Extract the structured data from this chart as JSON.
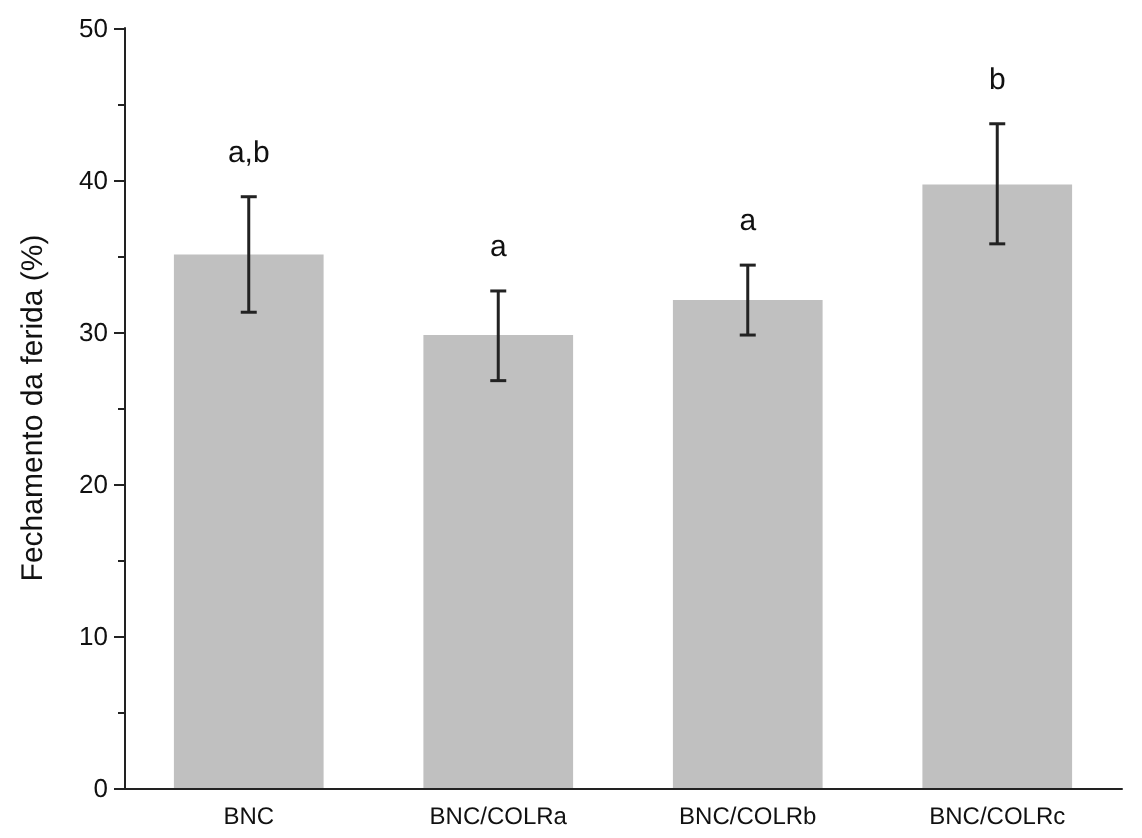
{
  "chart_data": {
    "type": "bar",
    "ylabel": "Fechamento da ferida (%)",
    "categories": [
      "BNC",
      "BNC/COLRa",
      "BNC/COLRb",
      "BNC/COLRc"
    ],
    "values": [
      35.1,
      29.8,
      32.1,
      39.7
    ],
    "errors": [
      [
        31.3,
        38.9
      ],
      [
        26.8,
        32.7
      ],
      [
        29.8,
        34.4
      ],
      [
        35.8,
        43.7
      ]
    ],
    "color": "#c0c0c0",
    "ylim": [
      0,
      50
    ],
    "yticks": [
      0,
      10,
      20,
      30,
      40,
      50
    ],
    "grid": false,
    "annotations": [
      "a,b",
      "a",
      "a",
      "b"
    ]
  }
}
